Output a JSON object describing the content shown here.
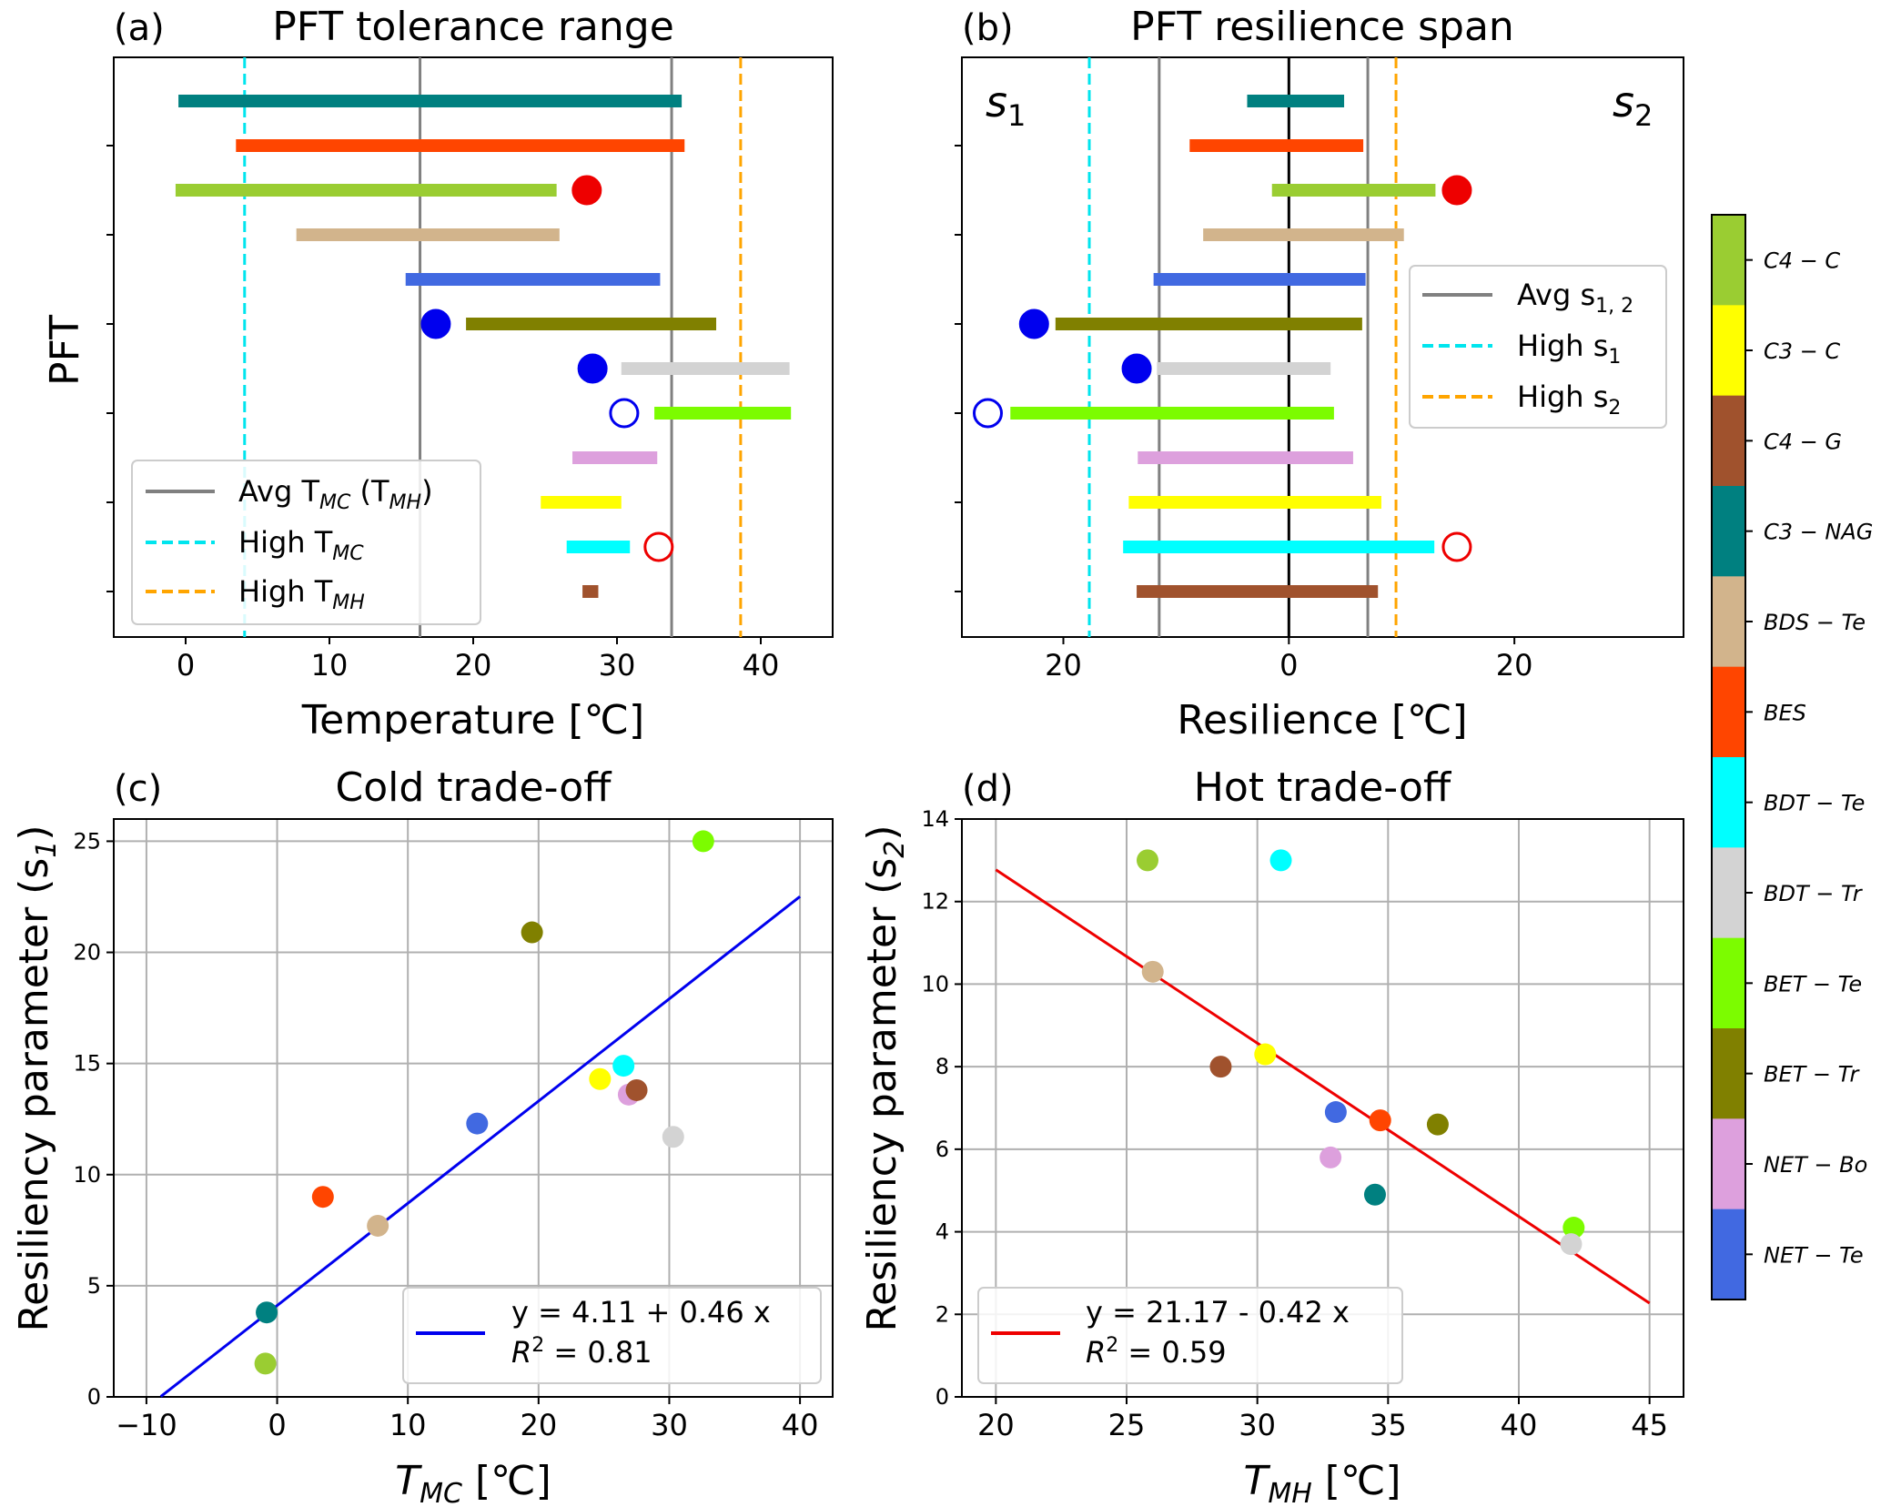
{
  "figure": {
    "colors": {
      "avg_line": "#808080",
      "high_low_line": "#00e5ee",
      "high_high_line": "#ffa500",
      "zero_line": "#000000",
      "fit_c": "#0000ee",
      "fit_d": "#ee0000",
      "marker_blue": "#0000ee",
      "marker_red": "#ee0000"
    },
    "pfts": [
      {
        "name": "C4 − C",
        "color": "#9acd32"
      },
      {
        "name": "C3 − C",
        "color": "#ffff00"
      },
      {
        "name": "C4 − G",
        "color": "#a0522d"
      },
      {
        "name": "C3 − NAG",
        "color": "#008080"
      },
      {
        "name": "BDS − Te",
        "color": "#d2b48c"
      },
      {
        "name": "BES",
        "color": "#ff4500"
      },
      {
        "name": "BDT − Te",
        "color": "#00ffff"
      },
      {
        "name": "BDT − Tr",
        "color": "#d3d3d3"
      },
      {
        "name": "BET − Te",
        "color": "#7cfc00"
      },
      {
        "name": "BET − Tr",
        "color": "#808000"
      },
      {
        "name": "NET − Bo",
        "color": "#dda0dd"
      },
      {
        "name": "NET − Te",
        "color": "#4169e1"
      }
    ]
  },
  "panels": {
    "a": {
      "label": "(a)",
      "title": "PFT tolerance range",
      "xlabel": "Temperature [℃]",
      "ylabel": "PFT",
      "legend": [
        {
          "text": "Avg T",
          "sub": "MC",
          "extra": " (T",
          "sub2": "MH",
          "tail": ")",
          "style": "avg"
        },
        {
          "text": "High T",
          "sub": "MC",
          "style": "high_low"
        },
        {
          "text": "High T",
          "sub": "MH",
          "style": "high_high"
        }
      ]
    },
    "b": {
      "label": "(b)",
      "title": "PFT resilience span",
      "xlabel": "Resilience [℃]",
      "s1_label": "s",
      "s1_sub": "1",
      "s2_label": "s",
      "s2_sub": "2",
      "legend": [
        {
          "text": "Avg s",
          "sub": "1, 2",
          "style": "avg"
        },
        {
          "text": "High s",
          "sub": "1",
          "style": "high_low"
        },
        {
          "text": "High s",
          "sub": "2",
          "style": "high_high"
        }
      ]
    },
    "c": {
      "label": "(c)",
      "title": "Cold trade-off",
      "xlabel": "T",
      "xlabel_sub": "MC",
      "xlabel_tail": " [℃]",
      "ylabel": "Resiliency parameter (s",
      "ylabel_sub": "1",
      "ylabel_tail": ")",
      "legend_eq": "y = 4.11 + 0.46 x",
      "legend_r2_pre": "R",
      "legend_r2_sup": "2",
      "legend_r2_tail": " = 0.81"
    },
    "d": {
      "label": "(d)",
      "title": "Hot trade-off",
      "xlabel": "T",
      "xlabel_sub": "MH",
      "xlabel_tail": " [℃]",
      "ylabel": "Resiliency parameter (s",
      "ylabel_sub": "2",
      "ylabel_tail": ")",
      "legend_eq": "y = 21.17 - 0.42 x",
      "legend_r2_pre": "R",
      "legend_r2_sup": "2",
      "legend_r2_tail": " = 0.59"
    }
  },
  "chart_data": [
    {
      "panel": "a",
      "type": "bar",
      "orientation": "horizontal-range",
      "title": "PFT tolerance range",
      "xlabel": "Temperature [℃]",
      "ylabel": "PFT",
      "xlim": [
        -5,
        45
      ],
      "xticks": [
        0,
        10,
        20,
        30,
        40
      ],
      "avg_lines": [
        16.3,
        33.8
      ],
      "high_tmc": 4.1,
      "high_tmh": 38.6,
      "bars": [
        {
          "pft": "C3 − NAG",
          "lo": -0.5,
          "hi": 34.5
        },
        {
          "pft": "BES",
          "lo": 3.5,
          "hi": 34.7
        },
        {
          "pft": "C4 − C",
          "lo": -0.7,
          "hi": 25.8
        },
        {
          "pft": "BDS − Te",
          "lo": 7.7,
          "hi": 26.0
        },
        {
          "pft": "NET − Te",
          "lo": 15.3,
          "hi": 33.0
        },
        {
          "pft": "BET − Tr",
          "lo": 19.5,
          "hi": 36.9
        },
        {
          "pft": "BDT − Tr",
          "lo": 30.3,
          "hi": 42.0
        },
        {
          "pft": "BET − Te",
          "lo": 32.6,
          "hi": 42.1
        },
        {
          "pft": "NET − Bo",
          "lo": 26.9,
          "hi": 32.8
        },
        {
          "pft": "C3 − C",
          "lo": 24.7,
          "hi": 30.3
        },
        {
          "pft": "BDT − Te",
          "lo": 26.5,
          "hi": 30.9
        },
        {
          "pft": "C4 − G",
          "lo": 27.6,
          "hi": 28.7
        }
      ],
      "markers": [
        {
          "row": 2,
          "x": 27.9,
          "color": "red",
          "filled": true
        },
        {
          "row": 5,
          "x": 17.4,
          "color": "blue",
          "filled": true
        },
        {
          "row": 6,
          "x": 28.3,
          "color": "blue",
          "filled": true
        },
        {
          "row": 7,
          "x": 30.5,
          "color": "blue",
          "filled": false
        },
        {
          "row": 10,
          "x": 32.9,
          "color": "red",
          "filled": false
        }
      ]
    },
    {
      "panel": "b",
      "type": "bar",
      "orientation": "horizontal-range",
      "title": "PFT resilience span",
      "xlabel": "Resilience [℃]",
      "xlim": [
        29,
        -35
      ],
      "xtick_labels": [
        {
          "value": 20,
          "label": "20"
        },
        {
          "value": 0,
          "label": "0"
        },
        {
          "value": -20,
          "label": "20"
        }
      ],
      "avg_lines": [
        11.5,
        -7.0
      ],
      "high_s1": 17.7,
      "high_s2": -9.5,
      "bars": [
        {
          "pft": "C3 − NAG",
          "s1": 3.7,
          "s2": 4.9
        },
        {
          "pft": "BES",
          "s1": 8.8,
          "s2": 6.6
        },
        {
          "pft": "C4 − C",
          "s1": 1.5,
          "s2": 13.0
        },
        {
          "pft": "BDS − Te",
          "s1": 7.6,
          "s2": 10.2
        },
        {
          "pft": "NET − Te",
          "s1": 12.0,
          "s2": 6.8
        },
        {
          "pft": "BET − Tr",
          "s1": 20.7,
          "s2": 6.5
        },
        {
          "pft": "BDT − Tr",
          "s1": 11.7,
          "s2": 3.7
        },
        {
          "pft": "BET − Te",
          "s1": 24.7,
          "s2": 4.0
        },
        {
          "pft": "NET − Bo",
          "s1": 13.4,
          "s2": 5.7
        },
        {
          "pft": "C3 − C",
          "s1": 14.2,
          "s2": 8.2
        },
        {
          "pft": "BDT − Te",
          "s1": 14.7,
          "s2": 12.9
        },
        {
          "pft": "C4 − G",
          "s1": 13.5,
          "s2": 7.9
        }
      ],
      "markers": [
        {
          "row": 2,
          "x": -14.9,
          "color": "red",
          "filled": true
        },
        {
          "row": 5,
          "x": 22.6,
          "color": "blue",
          "filled": true
        },
        {
          "row": 6,
          "x": 13.5,
          "color": "blue",
          "filled": true
        },
        {
          "row": 7,
          "x": 26.7,
          "color": "blue",
          "filled": false
        },
        {
          "row": 10,
          "x": -14.9,
          "color": "red",
          "filled": false
        }
      ]
    },
    {
      "panel": "c",
      "type": "scatter",
      "title": "Cold trade-off",
      "xlim": [
        -12.5,
        42.5
      ],
      "ylim": [
        0,
        26
      ],
      "xticks": [
        -10,
        0,
        10,
        20,
        30,
        40
      ],
      "yticks": [
        0,
        5,
        10,
        15,
        20,
        25
      ],
      "fit": {
        "intercept": 4.11,
        "slope": 0.46,
        "x_range": [
          -8.9,
          40
        ]
      },
      "points": [
        {
          "pft": "C4 − C",
          "x": -0.9,
          "y": 1.5
        },
        {
          "pft": "C3 − NAG",
          "x": -0.8,
          "y": 3.8
        },
        {
          "pft": "BES",
          "x": 3.5,
          "y": 9.0
        },
        {
          "pft": "BDS − Te",
          "x": 7.7,
          "y": 7.7
        },
        {
          "pft": "NET − Te",
          "x": 15.3,
          "y": 12.3
        },
        {
          "pft": "BET − Tr",
          "x": 19.5,
          "y": 20.9
        },
        {
          "pft": "C3 − C",
          "x": 24.7,
          "y": 14.3
        },
        {
          "pft": "BDT − Te",
          "x": 26.5,
          "y": 14.9
        },
        {
          "pft": "NET − Bo",
          "x": 26.9,
          "y": 13.6
        },
        {
          "pft": "C4 − G",
          "x": 27.5,
          "y": 13.8
        },
        {
          "pft": "BDT − Tr",
          "x": 30.3,
          "y": 11.7
        },
        {
          "pft": "BET − Te",
          "x": 32.6,
          "y": 25.0
        }
      ]
    },
    {
      "panel": "d",
      "type": "scatter",
      "title": "Hot trade-off",
      "xlim": [
        18.7,
        46.3
      ],
      "ylim": [
        0,
        14
      ],
      "xticks": [
        20,
        25,
        30,
        35,
        40,
        45
      ],
      "yticks": [
        0,
        2,
        4,
        6,
        8,
        10,
        12,
        14
      ],
      "fit": {
        "intercept": 21.17,
        "slope": -0.42,
        "x_range": [
          20,
          45
        ]
      },
      "points": [
        {
          "pft": "C4 − C",
          "x": 25.8,
          "y": 13.0
        },
        {
          "pft": "BDS − Te",
          "x": 26.0,
          "y": 10.3
        },
        {
          "pft": "C4 − G",
          "x": 28.6,
          "y": 8.0
        },
        {
          "pft": "C3 − C",
          "x": 30.3,
          "y": 8.3
        },
        {
          "pft": "BDT − Te",
          "x": 30.9,
          "y": 13.0
        },
        {
          "pft": "NET − Te",
          "x": 33.0,
          "y": 6.9
        },
        {
          "pft": "NET − Bo",
          "x": 32.8,
          "y": 5.8
        },
        {
          "pft": "C3 − NAG",
          "x": 34.5,
          "y": 4.9
        },
        {
          "pft": "BES",
          "x": 34.7,
          "y": 6.7
        },
        {
          "pft": "BET − Tr",
          "x": 36.9,
          "y": 6.6
        },
        {
          "pft": "BET − Te",
          "x": 42.1,
          "y": 4.1
        },
        {
          "pft": "BDT − Tr",
          "x": 42.0,
          "y": 3.7
        }
      ]
    }
  ]
}
